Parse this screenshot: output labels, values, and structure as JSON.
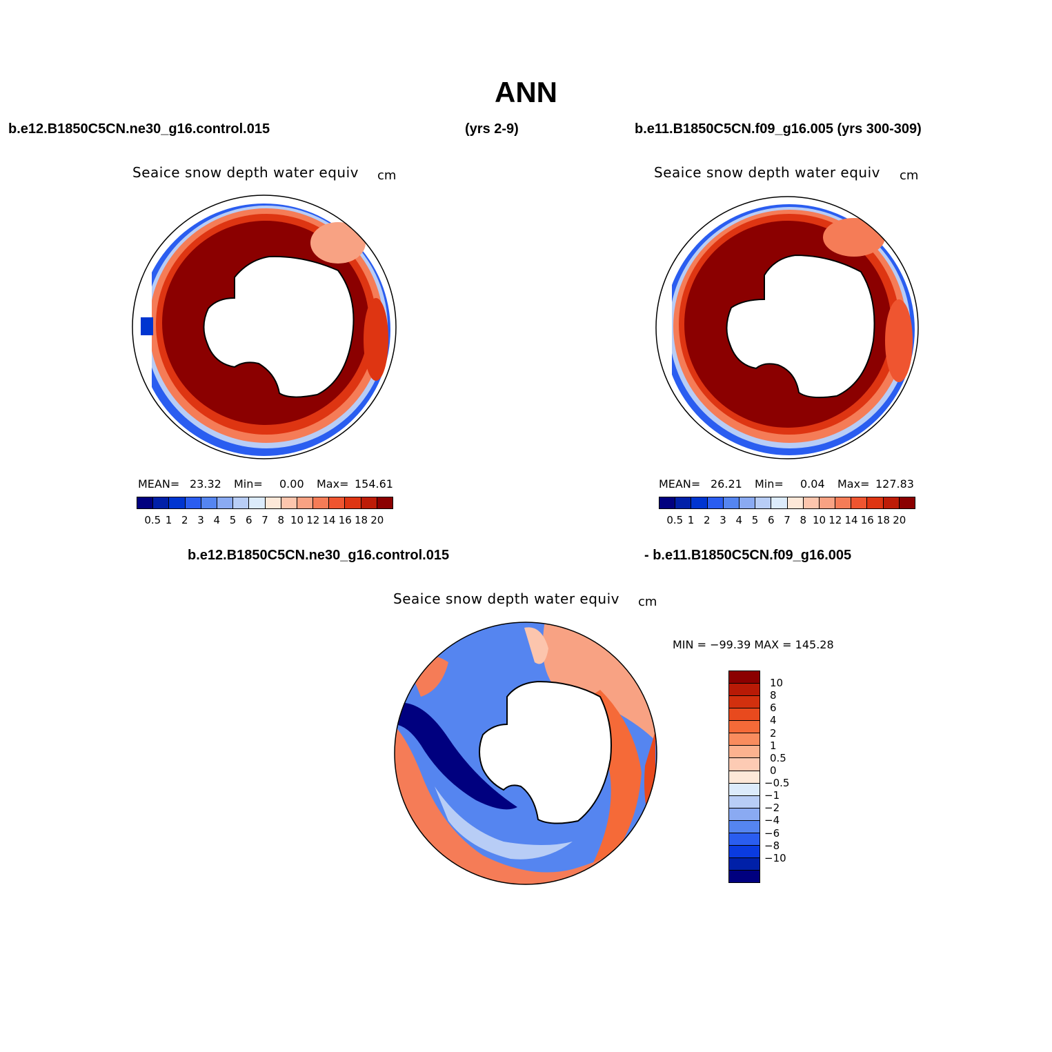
{
  "title": "ANN",
  "case1_label": "b.e12.B1850C5CN.ne30_g16.control.015",
  "case1_years": "(yrs 2-9)",
  "case2_label": "b.e11.B1850C5CN.f09_g16.005 (yrs 300-309)",
  "diff_label_left": "b.e12.B1850C5CN.ne30_g16.control.015",
  "diff_label_right": "- b.e11.B1850C5CN.f09_g16.005",
  "panels": [
    {
      "title": "Seaice snow depth water equiv",
      "units": "cm",
      "mean_label": "MEAN=",
      "mean": "23.32",
      "min_label": "Min=",
      "min": "0.00",
      "max_label": "Max=",
      "max": "154.61"
    },
    {
      "title": "Seaice snow depth water equiv",
      "units": "cm",
      "mean_label": "MEAN=",
      "mean": "26.21",
      "min_label": "Min=",
      "min": "0.04",
      "max_label": "Max=",
      "max": "127.83"
    }
  ],
  "diff_panel": {
    "title": "Seaice snow depth water equiv",
    "units": "cm",
    "minmax": "MIN = −99.39 MAX = 145.28"
  },
  "colorbar": {
    "colors": [
      "#00007f",
      "#0020a8",
      "#0035d0",
      "#2a5df0",
      "#5585f0",
      "#8aaaf2",
      "#b8cdf6",
      "#dcebfb",
      "#fde8d8",
      "#fcc5ad",
      "#f8a283",
      "#f57c57",
      "#ef5530",
      "#de3512",
      "#bd1c07",
      "#8b0000"
    ],
    "labels": [
      "0.5",
      "1",
      "2",
      "3",
      "4",
      "5",
      "6",
      "7",
      "8",
      "10",
      "12",
      "14",
      "16",
      "18",
      "20"
    ]
  },
  "diff_colorbar": {
    "colors": [
      "#8b0000",
      "#b81a06",
      "#d2300e",
      "#e84a1e",
      "#f56a38",
      "#f98c5e",
      "#fcb28f",
      "#fdcbb4",
      "#fde8d8",
      "#dcebfb",
      "#b8cdf6",
      "#8aaaf2",
      "#5585f0",
      "#2a5df0",
      "#0a3be0",
      "#0020a8",
      "#00007f"
    ],
    "labels": [
      "10",
      "8",
      "6",
      "4",
      "2",
      "1",
      "0.5",
      "0",
      "−0.5",
      "−1",
      "−2",
      "−4",
      "−6",
      "−8",
      "−10"
    ]
  }
}
